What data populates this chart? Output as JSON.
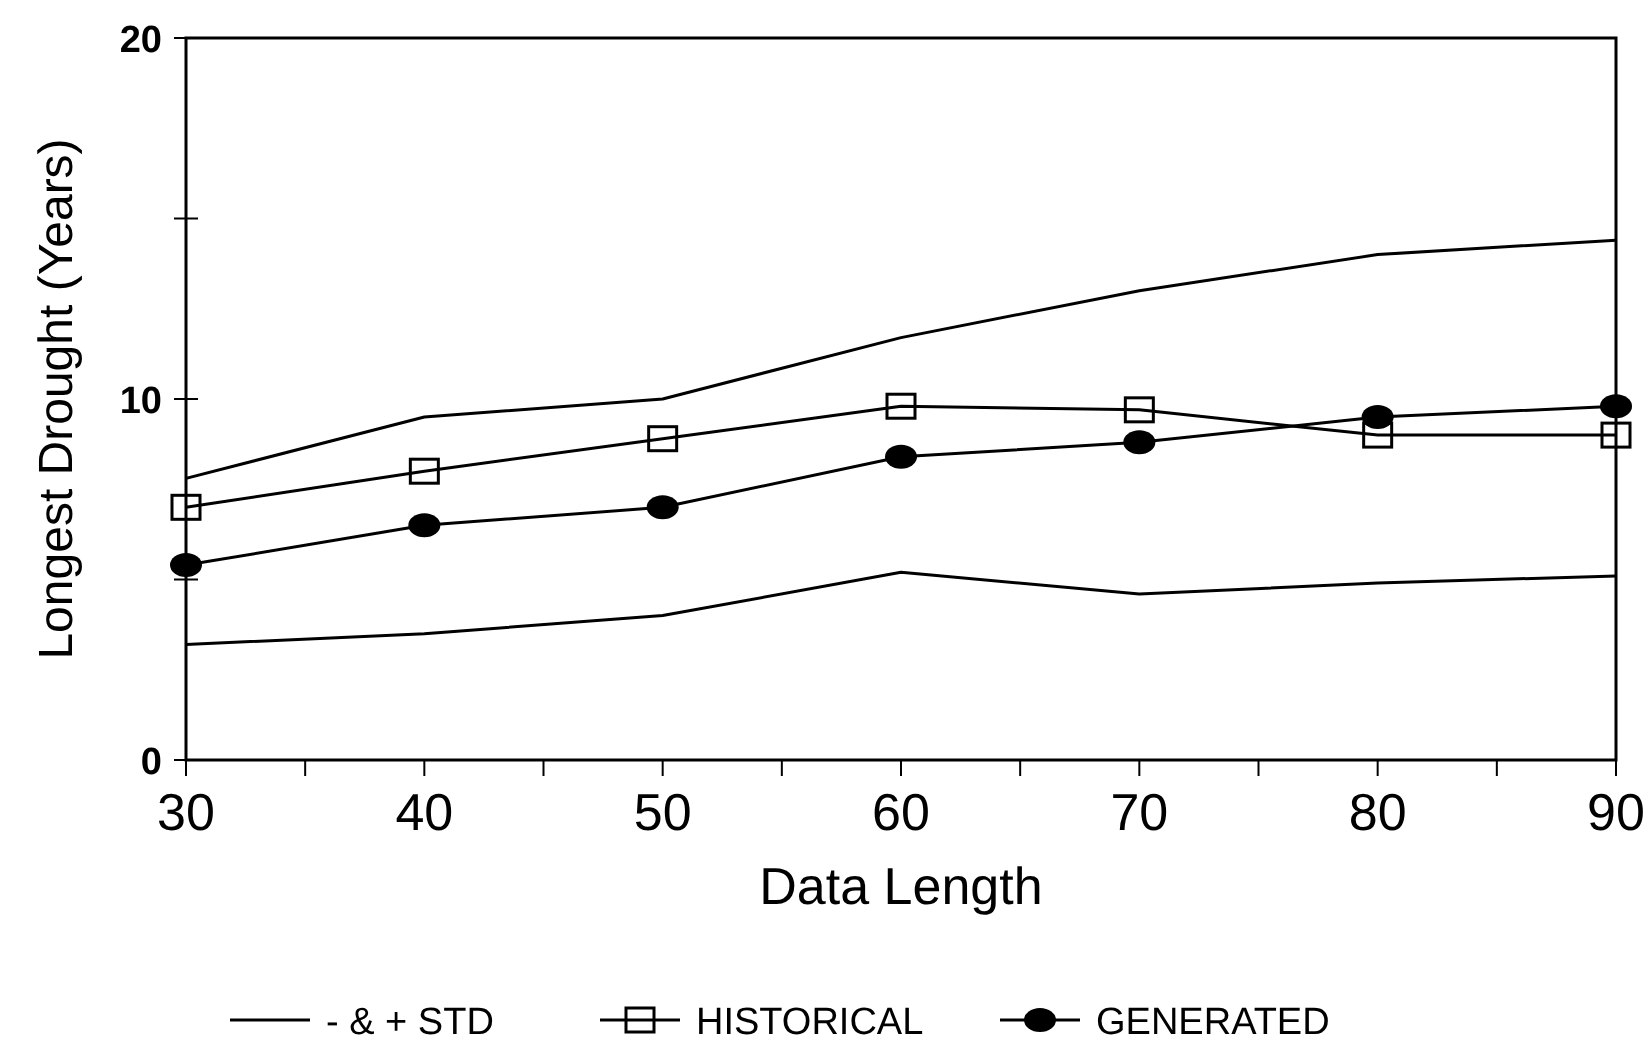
{
  "chart_data": {
    "type": "line",
    "xlabel": "Data Length",
    "ylabel": "Longest Drought (Years)",
    "x": [
      30,
      40,
      50,
      60,
      70,
      80,
      90
    ],
    "xlim": [
      30,
      90
    ],
    "xticks": [
      30,
      {
        "value": 35,
        "label": null
      },
      40,
      {
        "value": 45,
        "label": null
      },
      50,
      {
        "value": 55,
        "label": null
      },
      60,
      {
        "value": 65,
        "label": null
      },
      70,
      {
        "value": 75,
        "label": null
      },
      80,
      {
        "value": 85,
        "label": null
      },
      90
    ],
    "ylim": [
      0,
      20
    ],
    "yticks": [
      0,
      {
        "value": 5,
        "label": null
      },
      10,
      {
        "value": 15,
        "label": null
      },
      20
    ],
    "grid": false,
    "legend": "bottom",
    "series": [
      {
        "name": "- & + STD",
        "color": "#000000",
        "marker": "none",
        "values": [
          3.2,
          3.5,
          4.0,
          5.2,
          4.6,
          4.9,
          5.1
        ]
      },
      {
        "color": "#000000",
        "marker": "none",
        "values": [
          7.8,
          9.5,
          10.0,
          11.7,
          13.0,
          14.0,
          14.4
        ]
      },
      {
        "name": "HISTORICAL",
        "color": "#000000",
        "marker": "square",
        "values": [
          7.0,
          8.0,
          8.9,
          9.8,
          9.7,
          9.0,
          9.0
        ]
      },
      {
        "name": "GENERATED",
        "color": "#000000",
        "marker": "circle",
        "values": [
          5.4,
          6.5,
          7.0,
          8.4,
          8.8,
          9.5,
          9.8
        ]
      }
    ]
  }
}
